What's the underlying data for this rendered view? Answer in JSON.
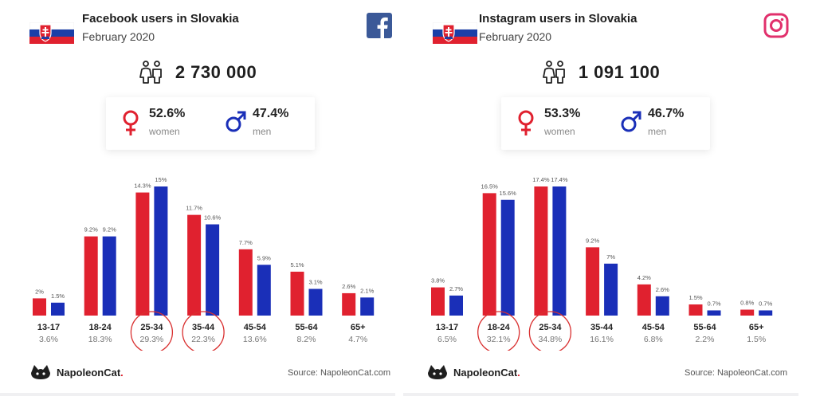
{
  "colors": {
    "women": "#e0212f",
    "men": "#1a2fb8",
    "highlight": "#d93030"
  },
  "panels": [
    {
      "brand_icon": "facebook-icon",
      "title": "Facebook users in Slovakia",
      "subtitle": "February 2020",
      "users_count": "2 730 000",
      "women": {
        "pct": "52.6%",
        "label": "women"
      },
      "men": {
        "pct": "47.4%",
        "label": "men"
      },
      "source": "Source: NapoleonCat.com",
      "logo": {
        "name": "NapoleonCat",
        "dot": "."
      }
    },
    {
      "brand_icon": "instagram-icon",
      "title": "Instagram users in Slovakia",
      "subtitle": "February 2020",
      "users_count": "1 091 100",
      "women": {
        "pct": "53.3%",
        "label": "women"
      },
      "men": {
        "pct": "46.7%",
        "label": "men"
      },
      "source": "Source: NapoleonCat.com",
      "logo": {
        "name": "NapoleonCat",
        "dot": "."
      }
    }
  ],
  "chart_data": [
    {
      "type": "bar",
      "categories": [
        "13-17",
        "18-24",
        "25-34",
        "35-44",
        "45-54",
        "55-64",
        "65+"
      ],
      "category_totals": [
        "3.6%",
        "18.3%",
        "29.3%",
        "22.3%",
        "13.6%",
        "8.2%",
        "4.7%"
      ],
      "highlighted": [
        "25-34",
        "35-44"
      ],
      "series": [
        {
          "name": "women",
          "values": [
            2,
            9.2,
            14.3,
            11.7,
            7.7,
            5.1,
            2.6
          ],
          "labels": [
            "2%",
            "9.2%",
            "14.3%",
            "11.7%",
            "7.7%",
            "5.1%",
            "2.6%"
          ]
        },
        {
          "name": "men",
          "values": [
            1.5,
            9.2,
            15,
            10.6,
            5.9,
            3.1,
            2.1
          ],
          "labels": [
            "1.5%",
            "9.2%",
            "15%",
            "10.6%",
            "5.9%",
            "3.1%",
            "2.1%"
          ]
        }
      ],
      "ylim": [
        0,
        15
      ],
      "grid": false
    },
    {
      "type": "bar",
      "categories": [
        "13-17",
        "18-24",
        "25-34",
        "35-44",
        "45-54",
        "55-64",
        "65+"
      ],
      "category_totals": [
        "6.5%",
        "32.1%",
        "34.8%",
        "16.1%",
        "6.8%",
        "2.2%",
        "1.5%"
      ],
      "highlighted": [
        "18-24",
        "25-34"
      ],
      "series": [
        {
          "name": "women",
          "values": [
            3.8,
            16.5,
            17.4,
            9.2,
            4.2,
            1.5,
            0.8
          ],
          "labels": [
            "3.8%",
            "16.5%",
            "17.4%",
            "9.2%",
            "4.2%",
            "1.5%",
            "0.8%"
          ]
        },
        {
          "name": "men",
          "values": [
            2.7,
            15.6,
            17.4,
            7,
            2.6,
            0.7,
            0.7
          ],
          "labels": [
            "2.7%",
            "15.6%",
            "17.4%",
            "7%",
            "2.6%",
            "0.7%",
            "0.7%"
          ]
        }
      ],
      "ylim": [
        0,
        17.4
      ],
      "grid": false
    }
  ]
}
